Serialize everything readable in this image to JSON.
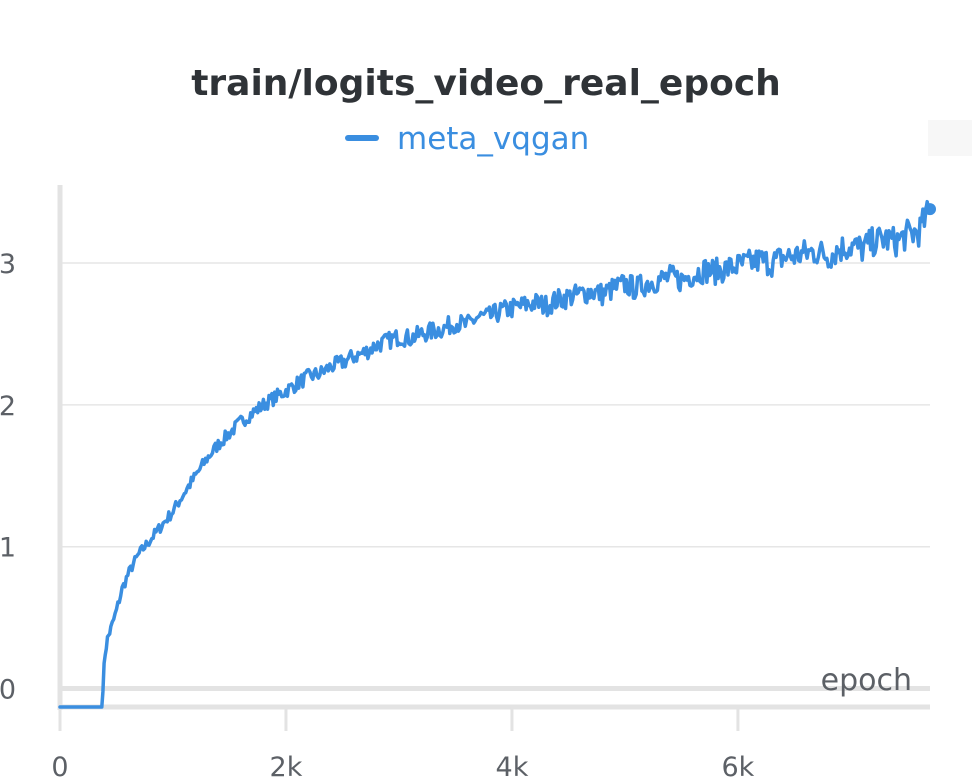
{
  "chart_data": {
    "type": "line",
    "title": "train/logits_video_real_epoch",
    "xlabel": "epoch",
    "ylabel": "",
    "xlim": [
      0,
      7700
    ],
    "ylim": [
      -0.13,
      3.55
    ],
    "x_ticks": [
      0,
      2000,
      4000,
      6000
    ],
    "x_tick_labels": [
      "0",
      "2k",
      "4k",
      "6k"
    ],
    "y_ticks": [
      0,
      1,
      2,
      3
    ],
    "y_tick_labels": [
      "0",
      "1",
      "2",
      "3"
    ],
    "grid": true,
    "legend_position": "top-center",
    "colors": {
      "series": "#3a8ee0",
      "grid": "#e6e6e6",
      "axis": "#e3e3e3"
    },
    "series": [
      {
        "name": "meta_vqgan",
        "x": [
          0,
          150,
          300,
          370,
          390,
          400,
          420,
          450,
          500,
          550,
          600,
          650,
          700,
          750,
          800,
          900,
          1000,
          1100,
          1200,
          1300,
          1400,
          1500,
          1600,
          1700,
          1800,
          1900,
          2000,
          2100,
          2200,
          2300,
          2400,
          2500,
          2600,
          2700,
          2800,
          2900,
          3000,
          3100,
          3200,
          3300,
          3400,
          3500,
          3600,
          3700,
          3800,
          3900,
          4000,
          4100,
          4200,
          4300,
          4400,
          4500,
          4600,
          4700,
          4800,
          4900,
          5000,
          5100,
          5200,
          5300,
          5400,
          5500,
          5600,
          5700,
          5800,
          5900,
          6000,
          6100,
          6200,
          6300,
          6400,
          6500,
          6600,
          6700,
          6800,
          6900,
          7000,
          7100,
          7200,
          7300,
          7400,
          7500,
          7600,
          7700
        ],
        "values": [
          -0.13,
          -0.13,
          -0.13,
          -0.13,
          0.15,
          0.25,
          0.35,
          0.42,
          0.55,
          0.7,
          0.8,
          0.88,
          0.95,
          1.0,
          1.05,
          1.15,
          1.25,
          1.38,
          1.5,
          1.62,
          1.72,
          1.8,
          1.88,
          1.94,
          2.0,
          2.05,
          2.1,
          2.15,
          2.2,
          2.22,
          2.27,
          2.3,
          2.34,
          2.37,
          2.42,
          2.45,
          2.48,
          2.47,
          2.5,
          2.52,
          2.54,
          2.58,
          2.56,
          2.62,
          2.62,
          2.66,
          2.68,
          2.7,
          2.72,
          2.7,
          2.74,
          2.76,
          2.78,
          2.8,
          2.78,
          2.82,
          2.85,
          2.82,
          2.86,
          2.88,
          2.9,
          2.88,
          2.92,
          2.95,
          2.94,
          2.96,
          2.98,
          3.0,
          3.02,
          3.0,
          3.04,
          3.05,
          3.07,
          3.08,
          3.05,
          3.1,
          3.12,
          3.1,
          3.15,
          3.17,
          3.15,
          3.2,
          3.22,
          3.38
        ]
      }
    ]
  }
}
